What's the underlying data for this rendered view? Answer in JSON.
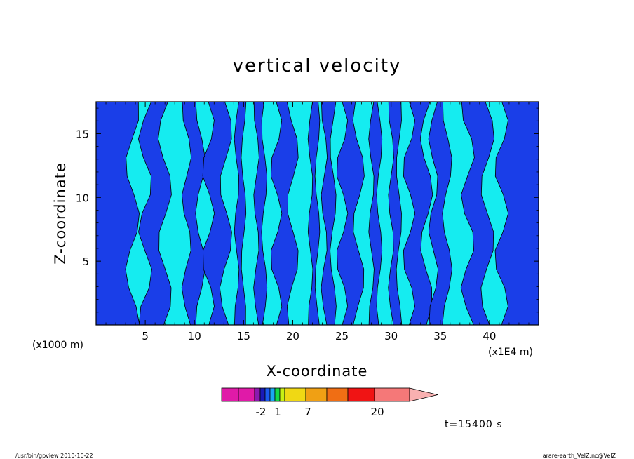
{
  "chart_data": {
    "type": "heatmap",
    "title": "vertical velocity",
    "xlabel": "X-coordinate",
    "ylabel": "Z-coordinate",
    "x_unit_left": "(x1000 m)",
    "x_unit_right": "(x1E4 m)",
    "xlim": [
      0,
      45
    ],
    "ylim": [
      0,
      17.5
    ],
    "x_ticks": [
      5,
      10,
      15,
      20,
      25,
      30,
      35,
      40
    ],
    "y_ticks": [
      5,
      10,
      15
    ],
    "colors": {
      "negative": "#1a3ee8",
      "positive": "#15ecf0",
      "contour": "#000000"
    },
    "negative_columns": [
      {
        "x0": 0.0,
        "x1": 3.7
      },
      {
        "x0": 5.0,
        "x1": 7.0
      },
      {
        "x0": 9.2,
        "x1": 10.6
      },
      {
        "x0": 11.4,
        "x1": 13.2
      },
      {
        "x0": 14.3,
        "x1": 15.0
      },
      {
        "x0": 16.3,
        "x1": 17.1
      },
      {
        "x0": 18.3,
        "x1": 20.0
      },
      {
        "x0": 21.8,
        "x1": 22.5
      },
      {
        "x0": 23.2,
        "x1": 24.1
      },
      {
        "x0": 25.0,
        "x1": 26.7
      },
      {
        "x0": 28.0,
        "x1": 28.8
      },
      {
        "x0": 30.0,
        "x1": 30.8
      },
      {
        "x0": 31.8,
        "x1": 33.6
      },
      {
        "x0": 34.3,
        "x1": 35.7
      },
      {
        "x0": 37.8,
        "x1": 39.8
      },
      {
        "x0": 41.2,
        "x1": 45.0
      }
    ],
    "colorbar": {
      "colors": [
        "#e01aa8",
        "#e01aa8",
        "#8a1ab0",
        "#1a1ab8",
        "#1a5af0",
        "#1aa8f0",
        "#14d846",
        "#c8f014",
        "#f0d814",
        "#f0a014",
        "#f06e14",
        "#f01414",
        "#f57878",
        "#f8b0b0"
      ],
      "tick_labels": [
        "-2",
        "1",
        "7",
        "20"
      ]
    }
  },
  "annotations": {
    "time": "t=15400 s",
    "program": "/usr/bin/gpview  2010-10-22",
    "source": "arare-earth_VelZ.nc@VelZ"
  }
}
